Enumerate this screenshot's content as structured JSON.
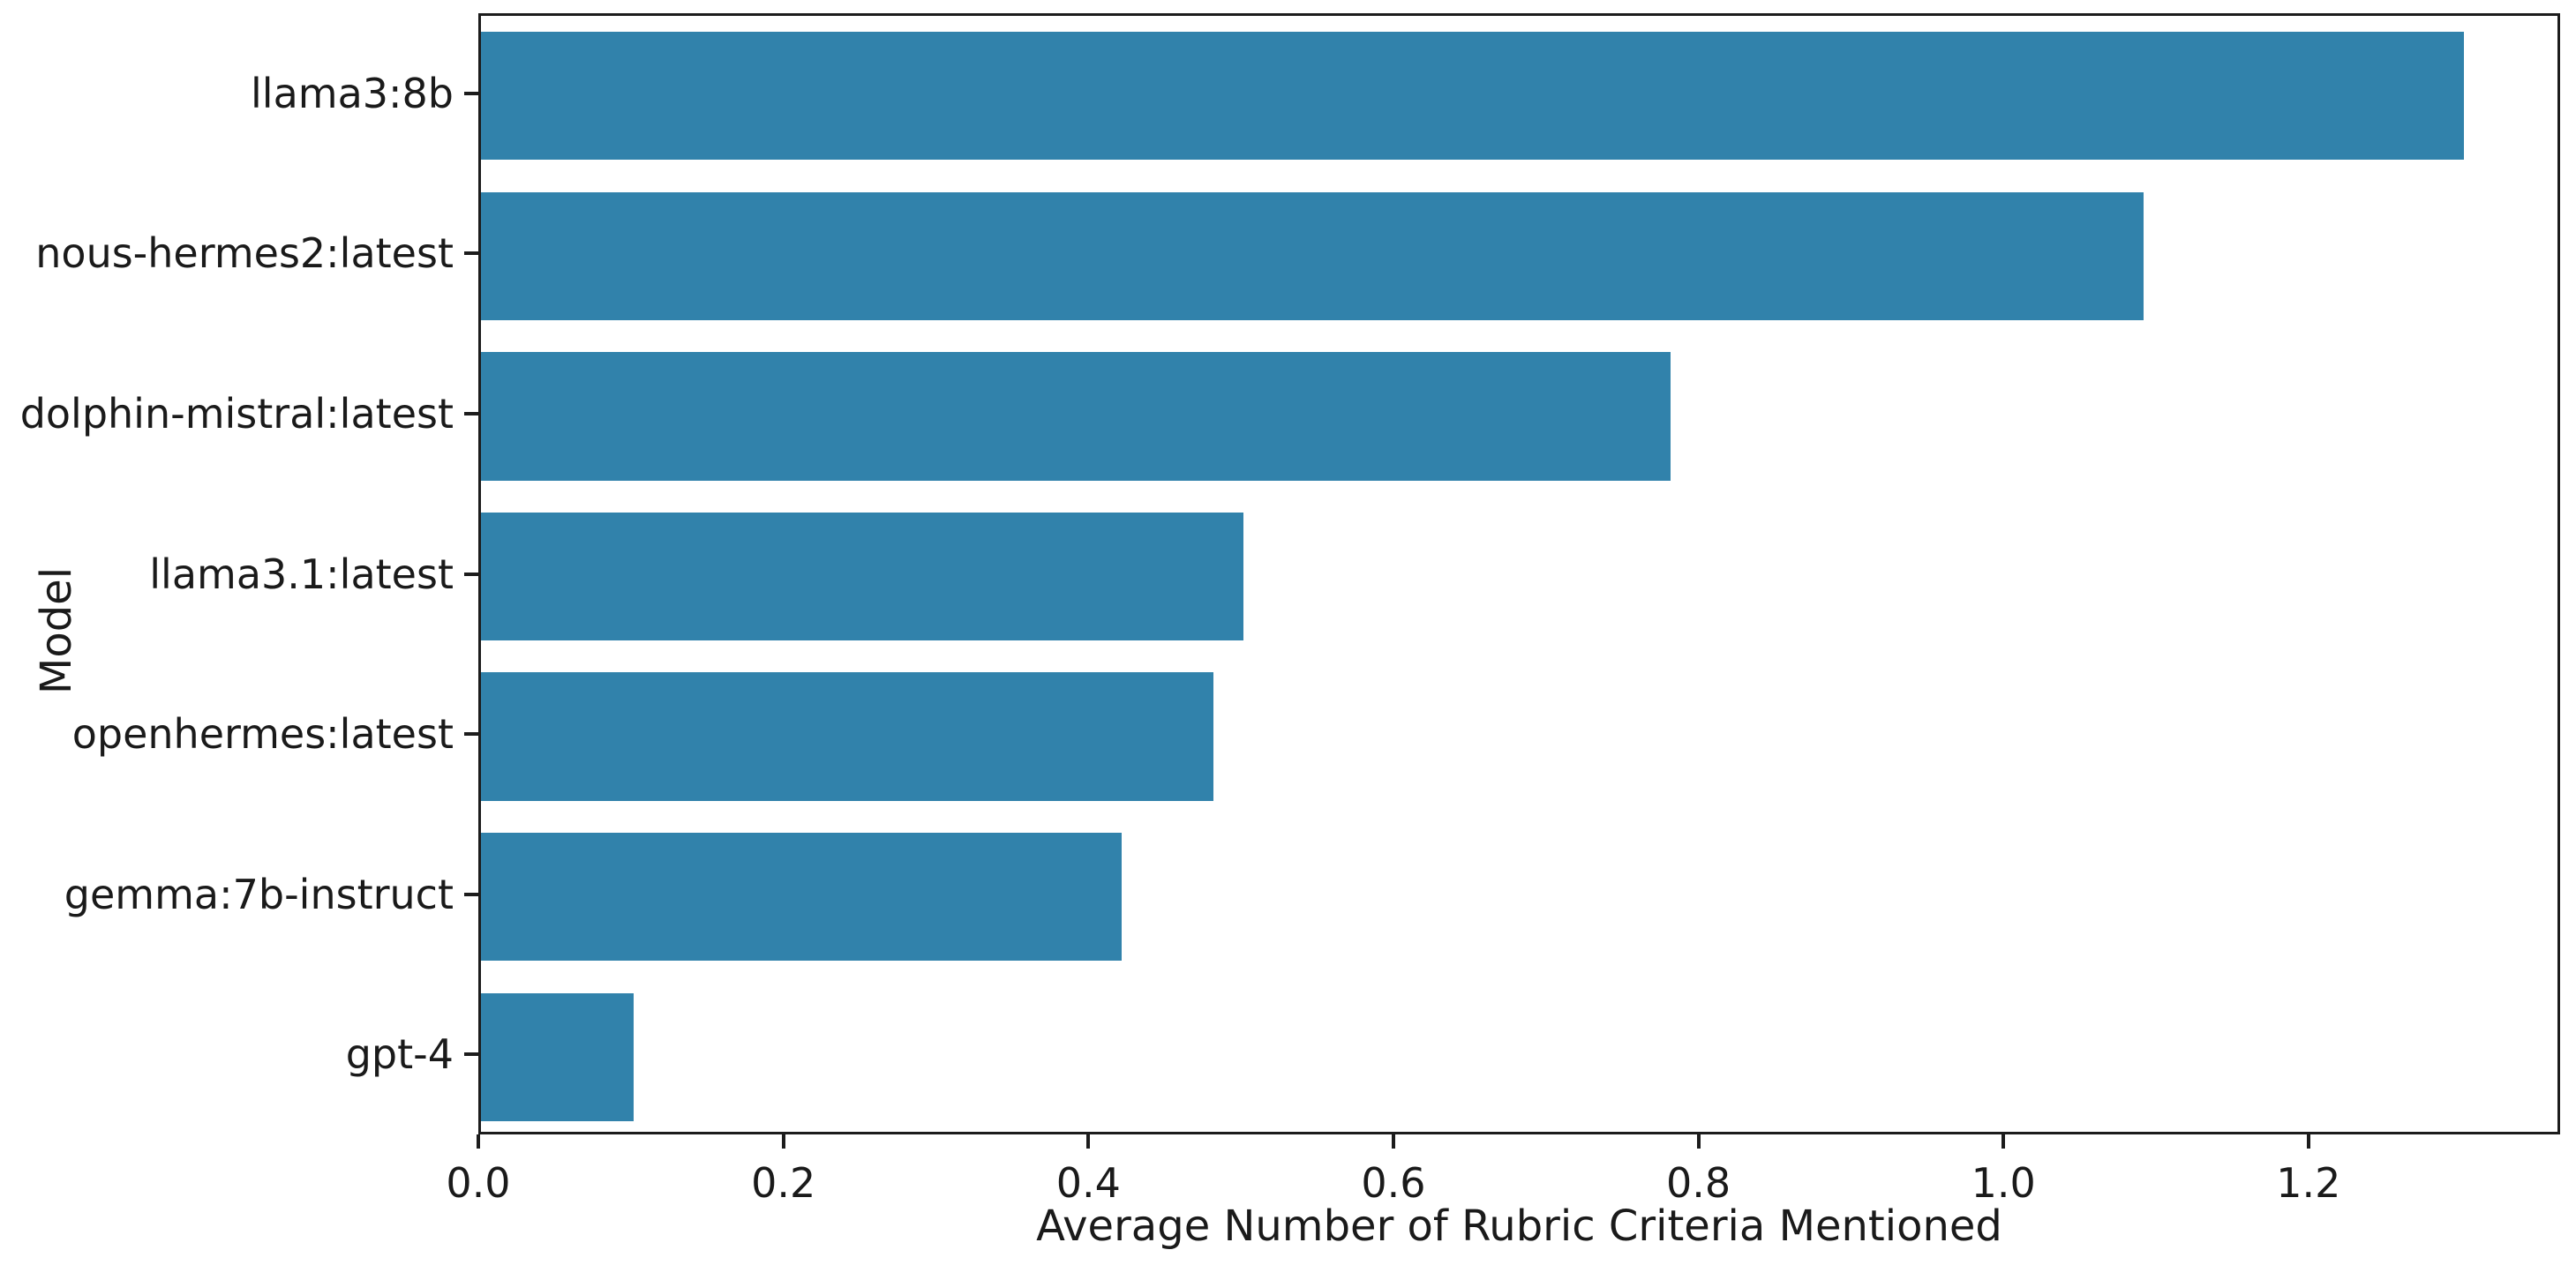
{
  "chart_data": {
    "type": "bar",
    "orientation": "horizontal",
    "title": "",
    "xlabel": "Average Number of Rubric Criteria Mentioned",
    "ylabel": "Model",
    "categories": [
      "llama3:8b",
      "nous-hermes2:latest",
      "dolphin-mistral:latest",
      "llama3.1:latest",
      "openhermes:latest",
      "gemma:7b-instruct",
      "gpt-4"
    ],
    "values": [
      1.3,
      1.09,
      0.78,
      0.5,
      0.48,
      0.42,
      0.1
    ],
    "xlim": [
      0,
      1.365
    ],
    "xticks": [
      0.0,
      0.2,
      0.4,
      0.6,
      0.8,
      1.0,
      1.2
    ],
    "xtick_labels": [
      "0.0",
      "0.2",
      "0.4",
      "0.6",
      "0.8",
      "1.0",
      "1.2"
    ],
    "bar_color": "#3182ab",
    "axis_color": "#1c1c1c",
    "grid": false,
    "legend": null
  }
}
